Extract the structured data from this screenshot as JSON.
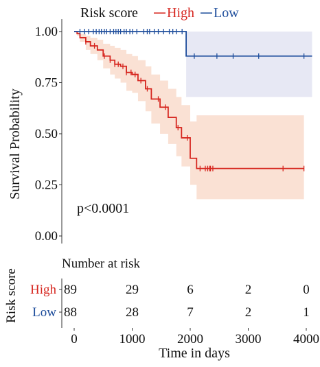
{
  "chart_data": {
    "type": "line",
    "chart_kind": "kaplan-meier survival curve with risk table",
    "legend": {
      "title": "Risk score",
      "placement": "top",
      "entries": [
        {
          "label": "High",
          "color": "#d6261f"
        },
        {
          "label": "Low",
          "color": "#1f4e9c"
        }
      ]
    },
    "ylabel": "Survival Probability",
    "xlabel": "Time in days",
    "ylim": [
      0,
      1.0
    ],
    "xlim": [
      0,
      4100
    ],
    "y_ticks": [
      {
        "value": 0.0,
        "label": "0.00"
      },
      {
        "value": 0.25,
        "label": "0.25"
      },
      {
        "value": 0.5,
        "label": "0.50"
      },
      {
        "value": 0.75,
        "label": "0.75"
      },
      {
        "value": 1.0,
        "label": "1.00"
      }
    ],
    "x_ticks": [
      {
        "value": 0,
        "label": "0"
      },
      {
        "value": 1000,
        "label": "1000"
      },
      {
        "value": 2000,
        "label": "2000"
      },
      {
        "value": 3000,
        "label": "3000"
      },
      {
        "value": 4000,
        "label": "4000"
      }
    ],
    "annotation": "p<0.0001",
    "series": [
      {
        "name": "High",
        "color": "#d6261f",
        "band_color": "#f9dccd",
        "steps": [
          [
            0,
            1.0
          ],
          [
            50,
            0.99
          ],
          [
            100,
            0.97
          ],
          [
            200,
            0.95
          ],
          [
            280,
            0.93
          ],
          [
            400,
            0.91
          ],
          [
            500,
            0.88
          ],
          [
            620,
            0.86
          ],
          [
            700,
            0.84
          ],
          [
            800,
            0.83
          ],
          [
            900,
            0.8
          ],
          [
            1000,
            0.79
          ],
          [
            1100,
            0.76
          ],
          [
            1230,
            0.72
          ],
          [
            1330,
            0.67
          ],
          [
            1480,
            0.63
          ],
          [
            1620,
            0.58
          ],
          [
            1760,
            0.53
          ],
          [
            1850,
            0.48
          ],
          [
            2000,
            0.38
          ],
          [
            2110,
            0.33
          ],
          [
            3960,
            0.33
          ]
        ],
        "ci": [
          [
            0,
            1.0,
            1.0
          ],
          [
            50,
            1.0,
            0.98
          ],
          [
            100,
            0.99,
            0.95
          ],
          [
            200,
            0.98,
            0.91
          ],
          [
            280,
            0.97,
            0.89
          ],
          [
            400,
            0.96,
            0.86
          ],
          [
            500,
            0.94,
            0.82
          ],
          [
            620,
            0.93,
            0.79
          ],
          [
            700,
            0.92,
            0.77
          ],
          [
            800,
            0.91,
            0.75
          ],
          [
            900,
            0.89,
            0.71
          ],
          [
            1000,
            0.88,
            0.7
          ],
          [
            1100,
            0.86,
            0.66
          ],
          [
            1230,
            0.83,
            0.61
          ],
          [
            1330,
            0.79,
            0.55
          ],
          [
            1480,
            0.76,
            0.5
          ],
          [
            1620,
            0.72,
            0.45
          ],
          [
            1760,
            0.68,
            0.39
          ],
          [
            1850,
            0.64,
            0.34
          ],
          [
            2000,
            0.56,
            0.25
          ],
          [
            2110,
            0.59,
            0.18
          ],
          [
            3960,
            0.59,
            0.18
          ]
        ],
        "censor_times": [
          200,
          350,
          520,
          620,
          700,
          760,
          840,
          900,
          980,
          1050,
          1150,
          1260,
          1450,
          1570,
          1790,
          1950,
          2170,
          2260,
          2300,
          2330,
          2350,
          2390,
          3600,
          3960
        ]
      },
      {
        "name": "Low",
        "color": "#1f4e9c",
        "band_color": "#e3e4f2",
        "steps": [
          [
            0,
            1.0
          ],
          [
            1930,
            1.0
          ],
          [
            1930,
            0.88
          ],
          [
            4100,
            0.88
          ]
        ],
        "ci": [
          [
            0,
            1.0,
            1.0
          ],
          [
            1930,
            1.0,
            1.0
          ],
          [
            1930,
            1.0,
            0.68
          ],
          [
            4100,
            1.0,
            0.68
          ]
        ],
        "censor_times": [
          100,
          180,
          250,
          330,
          380,
          430,
          470,
          520,
          560,
          620,
          680,
          720,
          760,
          800,
          860,
          900,
          960,
          1010,
          1080,
          1200,
          1260,
          1300,
          1380,
          1450,
          1540,
          1640,
          1700,
          1760,
          1860,
          2070,
          2460,
          2740,
          3180,
          3960
        ]
      }
    ]
  },
  "risk_table": {
    "title": "Number at risk",
    "axis_label": "Risk score",
    "rows": [
      {
        "label": "High",
        "color": "#d6261f",
        "values": [
          "89",
          "29",
          "6",
          "2",
          "0"
        ]
      },
      {
        "label": "Low",
        "color": "#1f4e9c",
        "values": [
          "88",
          "28",
          "7",
          "2",
          "1"
        ]
      }
    ]
  }
}
